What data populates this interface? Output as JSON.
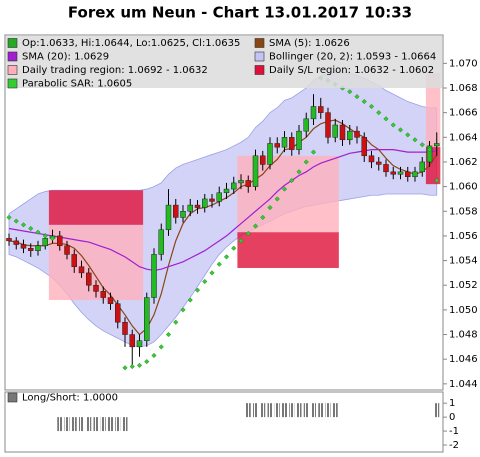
{
  "chart_data": [
    {
      "type": "candlestick",
      "title": "Forex um Neun - Chart 13.01.2017 10:33",
      "ylim": [
        1.0435,
        1.0723
      ],
      "yticks": [
        1.044,
        1.046,
        1.048,
        {
          "value": 1.05,
          "label": "1.050"
        },
        1.052,
        1.054,
        1.056,
        1.058,
        {
          "value": 1.06,
          "label": "1.060"
        },
        1.062,
        1.064,
        1.066,
        1.068,
        {
          "value": 1.07,
          "label": "1.070"
        }
      ],
      "ohlc": {
        "name": "Op:1.0633, Hi:1.0644, Lo:1.0625, Cl:1.0635",
        "color": "#22aa22",
        "color_up": "#22bb22",
        "color_down": "#cc1111",
        "open": [
          1.0558,
          1.0556,
          1.0553,
          1.055,
          1.0548,
          1.0552,
          1.0558,
          1.056,
          1.0552,
          1.0545,
          1.0535,
          1.053,
          1.052,
          1.0515,
          1.051,
          1.0505,
          1.049,
          1.048,
          1.047,
          1.0475,
          1.051,
          1.0545,
          1.0565,
          1.0585,
          1.0575,
          1.058,
          1.0585,
          1.0583,
          1.059,
          1.0588,
          1.0595,
          1.0598,
          1.0603,
          1.0605,
          1.06,
          1.0625,
          1.0618,
          1.0635,
          1.0632,
          1.064,
          1.063,
          1.0645,
          1.0655,
          1.0665,
          1.066,
          1.064,
          1.065,
          1.0638,
          1.0645,
          1.064,
          1.0625,
          1.062,
          1.0618,
          1.0612,
          1.061,
          1.0612,
          1.0608,
          1.0612,
          1.062,
          1.0633
        ],
        "high": [
          1.0562,
          1.0559,
          1.0557,
          1.0554,
          1.0556,
          1.0562,
          1.0565,
          1.0564,
          1.0556,
          1.0549,
          1.054,
          1.0534,
          1.0524,
          1.0519,
          1.0514,
          1.0508,
          1.0494,
          1.0484,
          1.048,
          1.0514,
          1.055,
          1.057,
          1.0598,
          1.059,
          1.0585,
          1.059,
          1.0589,
          1.0594,
          1.0594,
          1.06,
          1.0603,
          1.0608,
          1.061,
          1.0609,
          1.063,
          1.0629,
          1.064,
          1.064,
          1.0645,
          1.0644,
          1.065,
          1.066,
          1.0675,
          1.0672,
          1.0664,
          1.0655,
          1.0654,
          1.065,
          1.0649,
          1.0644,
          1.0629,
          1.0624,
          1.0622,
          1.0616,
          1.0616,
          1.0616,
          1.0616,
          1.0624,
          1.0637,
          1.0644
        ],
        "low": [
          1.0552,
          1.0549,
          1.0546,
          1.0543,
          1.0544,
          1.0549,
          1.0554,
          1.0548,
          1.0541,
          1.053,
          1.0526,
          1.0515,
          1.051,
          1.0505,
          1.05,
          1.0485,
          1.047,
          1.0455,
          1.0462,
          1.047,
          1.0505,
          1.054,
          1.056,
          1.057,
          1.0571,
          1.0576,
          1.0578,
          1.0579,
          1.0583,
          1.0584,
          1.059,
          1.0594,
          1.0598,
          1.0595,
          1.0597,
          1.0613,
          1.0614,
          1.0627,
          1.0628,
          1.0625,
          1.0626,
          1.064,
          1.065,
          1.0655,
          1.0635,
          1.0636,
          1.0633,
          1.0634,
          1.0635,
          1.062,
          1.0615,
          1.0613,
          1.0608,
          1.0606,
          1.0606,
          1.0604,
          1.0604,
          1.0608,
          1.0616,
          1.0625
        ],
        "close": [
          1.0556,
          1.0553,
          1.055,
          1.0548,
          1.0552,
          1.0558,
          1.056,
          1.0552,
          1.0545,
          1.0535,
          1.053,
          1.052,
          1.0515,
          1.051,
          1.0505,
          1.049,
          1.048,
          1.047,
          1.0475,
          1.051,
          1.0545,
          1.0565,
          1.0585,
          1.0575,
          1.058,
          1.0585,
          1.0583,
          1.059,
          1.0588,
          1.0595,
          1.0598,
          1.0603,
          1.0605,
          1.06,
          1.0625,
          1.0618,
          1.0635,
          1.0632,
          1.064,
          1.063,
          1.0645,
          1.0655,
          1.0665,
          1.066,
          1.064,
          1.065,
          1.0638,
          1.0645,
          1.064,
          1.0625,
          1.062,
          1.0618,
          1.0612,
          1.061,
          1.0612,
          1.0608,
          1.0612,
          1.062,
          1.0633,
          1.0635
        ]
      },
      "bollinger": {
        "name": "Bollinger (20, 2): 1.0593 - 1.0664",
        "color": "#c4c4f4",
        "upper": [
          1.0578,
          1.0582,
          1.0586,
          1.059,
          1.0594,
          1.0596,
          1.0597,
          1.0597,
          1.0597,
          1.0597,
          1.0597,
          1.0597,
          1.0597,
          1.0597,
          1.0597,
          1.0597,
          1.0597,
          1.0597,
          1.0597,
          1.0598,
          1.06,
          1.0603,
          1.061,
          1.0615,
          1.0618,
          1.062,
          1.0622,
          1.0624,
          1.0626,
          1.0628,
          1.063,
          1.0633,
          1.0636,
          1.064,
          1.0648,
          1.0653,
          1.066,
          1.0664,
          1.067,
          1.0672,
          1.0676,
          1.068,
          1.0686,
          1.069,
          1.0692,
          1.0693,
          1.0693,
          1.0692,
          1.069,
          1.0688,
          1.0685,
          1.0682,
          1.0678,
          1.0675,
          1.0672,
          1.0669,
          1.0667,
          1.0665,
          1.0664,
          1.0664
        ],
        "lower": [
          1.0545,
          1.0543,
          1.054,
          1.0537,
          1.0534,
          1.053,
          1.0526,
          1.052,
          1.0513,
          1.0505,
          1.0498,
          1.0492,
          1.0487,
          1.0483,
          1.048,
          1.0477,
          1.0474,
          1.0471,
          1.047,
          1.0471,
          1.0474,
          1.048,
          1.0487,
          1.0494,
          1.0502,
          1.051,
          1.0519,
          1.0528,
          1.0537,
          1.0545,
          1.0551,
          1.0556,
          1.056,
          1.0563,
          1.0566,
          1.0569,
          1.0572,
          1.0575,
          1.0578,
          1.058,
          1.0582,
          1.0584,
          1.0585,
          1.0586,
          1.0587,
          1.0588,
          1.0589,
          1.059,
          1.0591,
          1.0592,
          1.0593,
          1.0593,
          1.0594,
          1.0594,
          1.0594,
          1.0594,
          1.0594,
          1.0594,
          1.0593,
          1.0593
        ]
      },
      "regions": [
        {
          "name": "Daily trading region: 1.0692 - 1.0632",
          "color": "#ffb0bc",
          "spans": [
            {
              "start": 6,
              "end": 18,
              "high": 1.0569,
              "low": 1.0508
            },
            {
              "start": 32,
              "end": 45,
              "high": 1.0625,
              "low": 1.0563
            },
            {
              "start": 58,
              "end": 59,
              "high": 1.0692,
              "low": 1.0632
            }
          ]
        },
        {
          "name": "Daily S/L region: 1.0632 - 1.0602",
          "color": "#e0103a",
          "spans": [
            {
              "start": 6,
              "end": 18,
              "high": 1.0597,
              "low": 1.0569
            },
            {
              "start": 32,
              "end": 45,
              "high": 1.0563,
              "low": 1.0534
            },
            {
              "start": 58,
              "end": 59,
              "high": 1.0632,
              "low": 1.0602
            }
          ]
        }
      ],
      "series": [
        {
          "name": "SMA (5): 1.0626",
          "color": "#8b4513",
          "style": "line",
          "values": [
            1.0556,
            1.0555,
            1.0553,
            1.0552,
            1.0552,
            1.0552,
            1.0554,
            1.0554,
            1.0553,
            1.055,
            1.0544,
            1.0536,
            1.0527,
            1.0518,
            1.0512,
            1.0504,
            1.0496,
            1.0487,
            1.048,
            1.0485,
            1.0496,
            1.0513,
            1.0536,
            1.0556,
            1.057,
            1.0578,
            1.0582,
            1.0583,
            1.0585,
            1.0588,
            1.0591,
            1.0595,
            1.06,
            1.0602,
            1.0606,
            1.061,
            1.0617,
            1.0622,
            1.063,
            1.0631,
            1.0636,
            1.064,
            1.0647,
            1.0651,
            1.0653,
            1.0654,
            1.0651,
            1.0647,
            1.0643,
            1.064,
            1.0634,
            1.063,
            1.0623,
            1.0617,
            1.0614,
            1.0612,
            1.061,
            1.0612,
            1.0617,
            1.0626
          ]
        },
        {
          "name": "SMA (20): 1.0629",
          "color": "#a020d0",
          "style": "line",
          "values": [
            1.0566,
            1.0565,
            1.0564,
            1.0563,
            1.0562,
            1.0561,
            1.056,
            1.0559,
            1.0558,
            1.0557,
            1.0556,
            1.0555,
            1.0553,
            1.0551,
            1.0549,
            1.0546,
            1.0543,
            1.0539,
            1.0535,
            1.0533,
            1.0532,
            1.0533,
            1.0535,
            1.0537,
            1.0539,
            1.0542,
            1.0545,
            1.0548,
            1.0552,
            1.0556,
            1.056,
            1.0565,
            1.057,
            1.0575,
            1.058,
            1.0585,
            1.059,
            1.0596,
            1.0601,
            1.0605,
            1.0609,
            1.0612,
            1.0616,
            1.0619,
            1.0621,
            1.0623,
            1.0625,
            1.0627,
            1.0628,
            1.0629,
            1.063,
            1.063,
            1.063,
            1.063,
            1.0629,
            1.0628,
            1.0628,
            1.0628,
            1.0628,
            1.0629
          ]
        },
        {
          "name": "Parabolic SAR: 1.0605",
          "color": "#33cc33",
          "style": "dots",
          "values": [
            1.0575,
            1.0572,
            1.0569,
            1.0566,
            1.0563,
            1.056,
            1.0558,
            null,
            null,
            null,
            null,
            null,
            null,
            null,
            null,
            null,
            1.0453,
            1.0454,
            1.0455,
            1.0458,
            1.0463,
            1.047,
            1.048,
            1.049,
            1.05,
            1.0508,
            1.0516,
            1.0523,
            1.053,
            1.0537,
            1.0543,
            1.055,
            1.0556,
            1.0562,
            1.0568,
            1.0575,
            1.0583,
            1.059,
            1.0598,
            1.0605,
            1.0612,
            1.062,
            1.0628,
            1.0688,
            1.0686,
            1.0683,
            1.068,
            1.0677,
            1.0673,
            1.0669,
            1.0665,
            1.066,
            1.0655,
            1.065,
            1.0646,
            1.0642,
            1.0638,
            1.0634,
            1.063,
            1.0605
          ]
        }
      ]
    },
    {
      "type": "bar",
      "name": "Long/Short: 1.0000",
      "color": "#777777",
      "ylim": [
        -2.5,
        1.8
      ],
      "yticks": [
        1,
        0,
        -1,
        -2
      ],
      "values": [
        0,
        0,
        0,
        0,
        0,
        0,
        0,
        -1,
        -1,
        -1,
        -1,
        -1,
        -1,
        -1,
        -1,
        -1,
        -1,
        0,
        0,
        0,
        0,
        0,
        0,
        0,
        0,
        0,
        0,
        0,
        0,
        0,
        0,
        0,
        0,
        1,
        1,
        1,
        1,
        1,
        1,
        1,
        1,
        1,
        1,
        1,
        1,
        1,
        0,
        0,
        0,
        0,
        0,
        0,
        0,
        0,
        0,
        0,
        0,
        0,
        0,
        1
      ]
    }
  ]
}
